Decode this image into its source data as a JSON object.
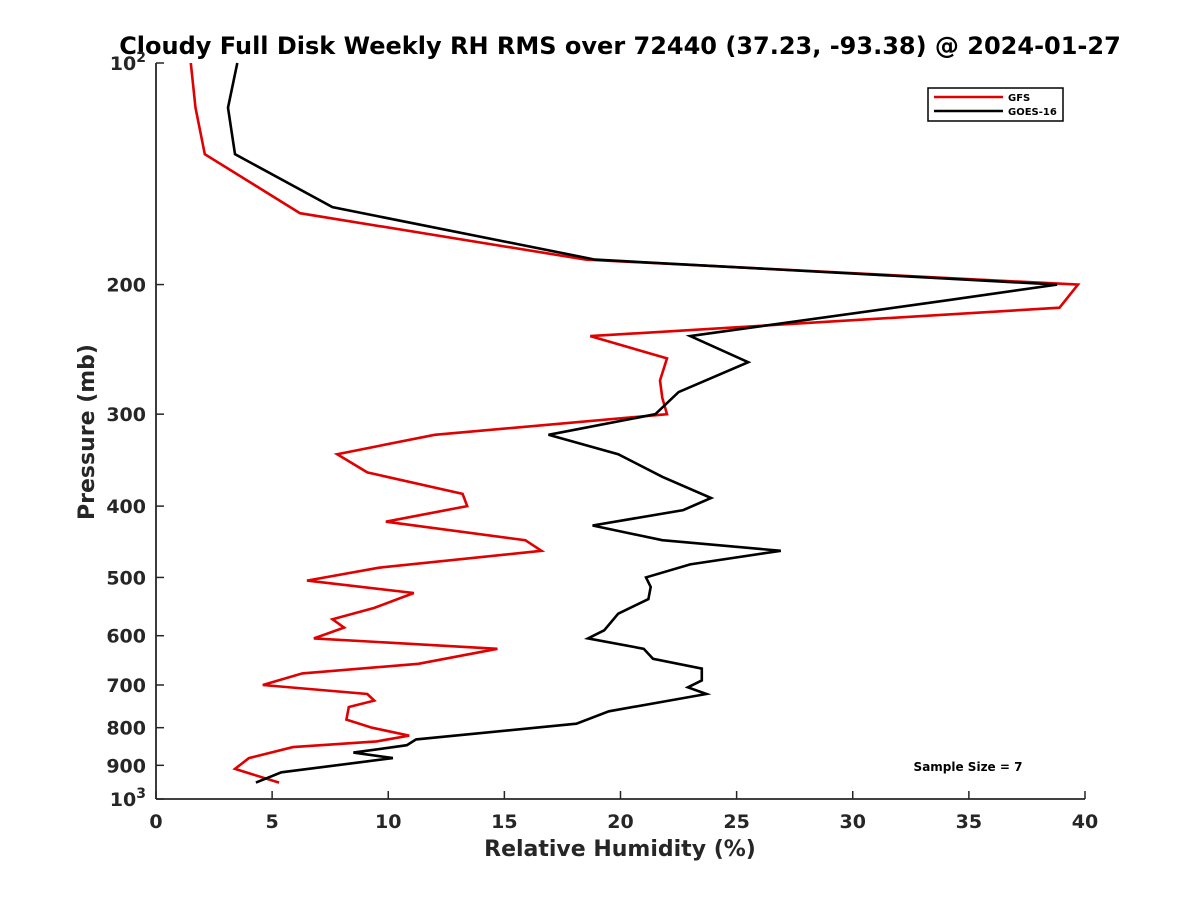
{
  "chart_data": {
    "type": "line",
    "title": "Cloudy Full Disk Weekly RH RMS over 72440 (37.23, -93.38) @ 2024-01-27",
    "xlabel": "Relative Humidity (%)",
    "ylabel": "Pressure (mb)",
    "xlim": [
      0,
      40
    ],
    "ylim": [
      100,
      1000
    ],
    "y_scale": "log",
    "y_reversed": true,
    "grid": false,
    "x_ticks": [
      0,
      5,
      10,
      15,
      20,
      25,
      30,
      35,
      40
    ],
    "y_ticks": [
      {
        "value": 100,
        "label": "10",
        "sup": "2"
      },
      {
        "value": 200,
        "label": "200",
        "sup": ""
      },
      {
        "value": 300,
        "label": "300",
        "sup": ""
      },
      {
        "value": 400,
        "label": "400",
        "sup": ""
      },
      {
        "value": 500,
        "label": "500",
        "sup": ""
      },
      {
        "value": 600,
        "label": "600",
        "sup": ""
      },
      {
        "value": 700,
        "label": "700",
        "sup": ""
      },
      {
        "value": 800,
        "label": "800",
        "sup": ""
      },
      {
        "value": 900,
        "label": "900",
        "sup": ""
      },
      {
        "value": 1000,
        "label": "10",
        "sup": "3"
      }
    ],
    "legend_position": "top-right",
    "annotation": "Sample Size = 7",
    "series": [
      {
        "name": "GFS",
        "color": "#e00000",
        "points": [
          [
            1.5,
            100
          ],
          [
            1.7,
            115
          ],
          [
            2.1,
            133
          ],
          [
            6.2,
            160
          ],
          [
            18.5,
            185
          ],
          [
            39.7,
            200
          ],
          [
            38.9,
            215
          ],
          [
            18.7,
            235
          ],
          [
            22.0,
            252
          ],
          [
            21.7,
            270
          ],
          [
            21.8,
            285
          ],
          [
            22.0,
            300
          ],
          [
            12.0,
            320
          ],
          [
            7.8,
            340
          ],
          [
            9.1,
            360
          ],
          [
            13.2,
            385
          ],
          [
            13.4,
            400
          ],
          [
            9.9,
            420
          ],
          [
            15.9,
            445
          ],
          [
            16.6,
            460
          ],
          [
            9.6,
            485
          ],
          [
            6.5,
            505
          ],
          [
            11.1,
            525
          ],
          [
            9.4,
            550
          ],
          [
            7.6,
            570
          ],
          [
            8.1,
            585
          ],
          [
            6.8,
            605
          ],
          [
            14.7,
            625
          ],
          [
            11.3,
            655
          ],
          [
            6.3,
            675
          ],
          [
            4.6,
            700
          ],
          [
            9.1,
            720
          ],
          [
            9.4,
            735
          ],
          [
            8.3,
            750
          ],
          [
            8.2,
            780
          ],
          [
            9.3,
            800
          ],
          [
            10.9,
            820
          ],
          [
            9.5,
            835
          ],
          [
            5.9,
            850
          ],
          [
            4.0,
            880
          ],
          [
            3.4,
            910
          ],
          [
            5.3,
            950
          ]
        ]
      },
      {
        "name": "GOES-16",
        "color": "#000000",
        "points": [
          [
            3.5,
            100
          ],
          [
            3.1,
            115
          ],
          [
            3.4,
            133
          ],
          [
            7.6,
            157
          ],
          [
            18.9,
            185
          ],
          [
            38.8,
            200
          ],
          [
            34.1,
            210
          ],
          [
            23.0,
            235
          ],
          [
            25.5,
            255
          ],
          [
            22.5,
            280
          ],
          [
            21.5,
            300
          ],
          [
            16.9,
            320
          ],
          [
            19.9,
            340
          ],
          [
            21.8,
            365
          ],
          [
            23.9,
            390
          ],
          [
            22.7,
            405
          ],
          [
            18.8,
            425
          ],
          [
            21.8,
            445
          ],
          [
            26.9,
            460
          ],
          [
            23.0,
            480
          ],
          [
            21.1,
            500
          ],
          [
            21.3,
            515
          ],
          [
            21.2,
            535
          ],
          [
            19.9,
            560
          ],
          [
            19.3,
            590
          ],
          [
            18.6,
            605
          ],
          [
            21.0,
            625
          ],
          [
            21.4,
            645
          ],
          [
            23.5,
            665
          ],
          [
            23.5,
            690
          ],
          [
            22.9,
            705
          ],
          [
            23.7,
            720
          ],
          [
            19.5,
            760
          ],
          [
            18.1,
            790
          ],
          [
            11.2,
            830
          ],
          [
            10.8,
            845
          ],
          [
            8.5,
            865
          ],
          [
            10.2,
            880
          ],
          [
            5.4,
            920
          ],
          [
            4.3,
            950
          ]
        ]
      }
    ]
  }
}
